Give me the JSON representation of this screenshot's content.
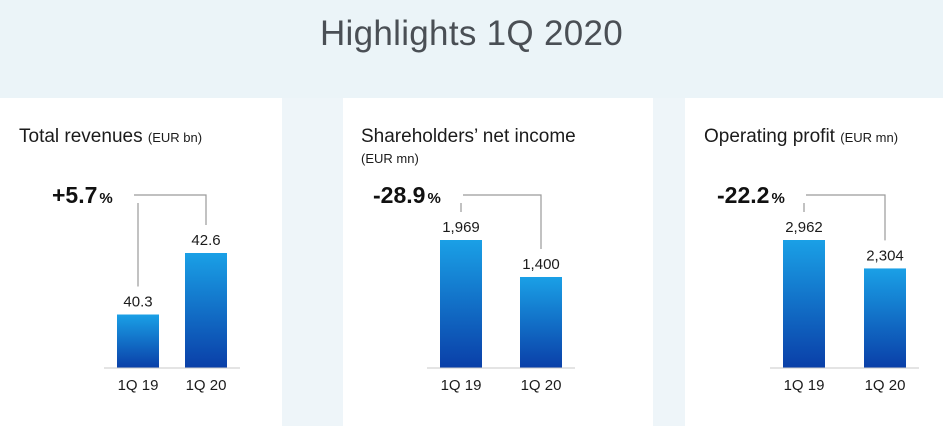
{
  "page_title": "Highlights 1Q 2020",
  "colors": {
    "bar_top": "#1aa0e6",
    "bar_bottom": "#0a3fa8",
    "connector": "#9a9a9a"
  },
  "panels": [
    {
      "title": "Total revenues",
      "unit": "(EUR bn)",
      "unit_on_new_line": false,
      "change_value": "+5.7",
      "change_pct": "%"
    },
    {
      "title": "Shareholders’ net income",
      "unit": "(EUR mn)",
      "unit_on_new_line": true,
      "change_value": "-28.9",
      "change_pct": "%"
    },
    {
      "title": "Operating profit",
      "unit": "(EUR mn)",
      "unit_on_new_line": false,
      "change_value": "-22.2",
      "change_pct": "%"
    }
  ],
  "chart_data": [
    {
      "type": "bar",
      "title": "Total revenues (EUR bn)",
      "categories": [
        "1Q 19",
        "1Q 20"
      ],
      "values": [
        40.3,
        42.6
      ],
      "labels": [
        "40.3",
        "42.6"
      ],
      "annotation": "+5.7%"
    },
    {
      "type": "bar",
      "title": "Shareholders’ net income (EUR mn)",
      "categories": [
        "1Q 19",
        "1Q 20"
      ],
      "values": [
        1969,
        1400
      ],
      "labels": [
        "1,969",
        "1,400"
      ],
      "annotation": "-28.9%"
    },
    {
      "type": "bar",
      "title": "Operating profit (EUR mn)",
      "categories": [
        "1Q 19",
        "1Q 20"
      ],
      "values": [
        2962,
        2304
      ],
      "labels": [
        "2,962",
        "2,304"
      ],
      "annotation": "-22.2%"
    }
  ]
}
